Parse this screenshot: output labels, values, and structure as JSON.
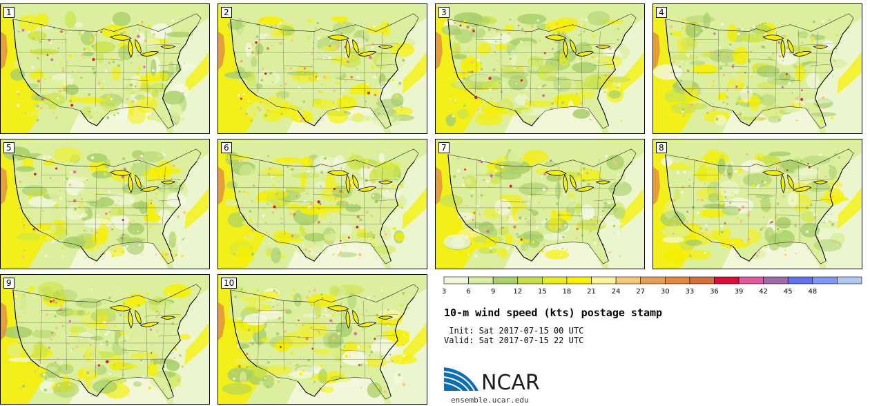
{
  "figure": {
    "title": "10-m wind speed (kts) postage stamp",
    "init_line": " Init: Sat 2017-07-15 00 UTC",
    "valid_line": "Valid: Sat 2017-07-15 22 UTC",
    "logo_text": "NCAR",
    "website": "ensemble.ucar.edu"
  },
  "members": [
    "1",
    "2",
    "3",
    "4",
    "5",
    "6",
    "7",
    "8",
    "9",
    "10"
  ],
  "colorbar": {
    "ticks": [
      "3",
      "6",
      "9",
      "12",
      "15",
      "18",
      "21",
      "24",
      "27",
      "30",
      "33",
      "36",
      "39",
      "42",
      "45",
      "48"
    ],
    "colors": [
      "#f2f7dc",
      "#d7ec9f",
      "#a9d06a",
      "#c7df4a",
      "#e6ee22",
      "#fcf000",
      "#fdf39a",
      "#f5c87a",
      "#e4a057",
      "#df8a3f",
      "#d6703a",
      "#e00b39",
      "#df5a9e",
      "#9e6aa8",
      "#6371ee",
      "#7f97f1",
      "#b3c6f5"
    ]
  },
  "palette": {
    "calm": "#f4f8e2",
    "light": "#dcef9f",
    "moderate": "#a8cf6a",
    "yellow_green": "#cde44b",
    "yellow": "#f6f000",
    "pale_orange": "#f3c47a",
    "orange": "#e08b45",
    "red": "#e11a3a",
    "pink": "#dc6cae",
    "ocean_low": "#eef7d6",
    "ncar_blue": "#0b6fb6"
  }
}
